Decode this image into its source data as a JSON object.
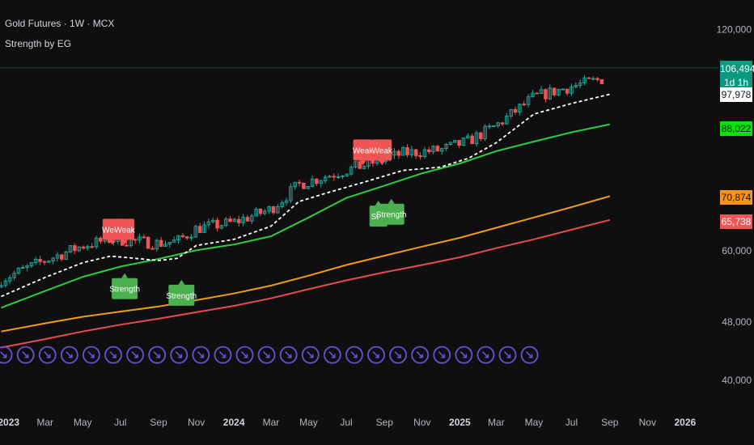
{
  "header": {
    "symbol_line": "Gold Futures · 1W · MCX",
    "indicator_line": "Strength by EG"
  },
  "colors": {
    "background": "#0f0f10",
    "up_candle": "#26a69a",
    "down_candle": "#f05454",
    "ema_fast": "#2ecc40",
    "ema_mid": "#f39c12",
    "ema_slow": "#e74c4c",
    "trail": "#ffffff",
    "weak_label": "#f05454",
    "strength_label": "#4caf50",
    "marker": "#6d4fd6"
  },
  "chart_data": {
    "type": "line",
    "title": "Gold Futures · 1W · MCX",
    "indicator": "Strength by EG",
    "y_axis": {
      "ticks": [
        120000,
        60000,
        48000,
        40000
      ],
      "tick_labels": [
        "120,000",
        "60,000",
        "48,000",
        "40,000"
      ],
      "scale": "log",
      "range": [
        38000,
        125000
      ]
    },
    "x_axis": {
      "tick_labels": [
        "2023",
        "Mar",
        "May",
        "Jul",
        "Sep",
        "Nov",
        "2024",
        "Mar",
        "May",
        "Jul",
        "Sep",
        "Nov",
        "2025",
        "Mar",
        "May",
        "Jul",
        "Sep",
        "Nov",
        "2026"
      ],
      "bold_labels": [
        "2023",
        "2024",
        "2025",
        "2026"
      ],
      "range": [
        "2022-12-18",
        "2026-02-20"
      ]
    },
    "price_tags": [
      {
        "value": "106,494",
        "sub": "1d 1h",
        "bg": "#089981",
        "fg": "#ffffff"
      },
      {
        "value": "97,978",
        "sub": "",
        "bg": "#ffffff",
        "fg": "#131722"
      },
      {
        "value": "88,022",
        "sub": "",
        "bg": "#00e600",
        "fg": "#131722"
      },
      {
        "value": "70,874",
        "sub": "",
        "bg": "#f7931a",
        "fg": "#131722"
      },
      {
        "value": "65,738",
        "sub": "",
        "bg": "#f05454",
        "fg": "#ffffff"
      }
    ],
    "price_tag_levels": [
      106494,
      97978,
      88022,
      70874,
      65738
    ],
    "series": [
      {
        "key": "ema_fast",
        "points": [
          [
            "2022-12-20",
            50200
          ],
          [
            "2023-03-01",
            52900
          ],
          [
            "2023-05-01",
            55300
          ],
          [
            "2023-07-01",
            57100
          ],
          [
            "2023-09-01",
            58500
          ],
          [
            "2023-11-01",
            60100
          ],
          [
            "2024-01-01",
            61200
          ],
          [
            "2024-03-01",
            62800
          ],
          [
            "2024-05-01",
            66600
          ],
          [
            "2024-07-01",
            70800
          ],
          [
            "2024-09-01",
            73600
          ],
          [
            "2024-11-01",
            76500
          ],
          [
            "2025-01-01",
            78900
          ],
          [
            "2025-03-01",
            82000
          ],
          [
            "2025-05-01",
            84500
          ],
          [
            "2025-07-01",
            87000
          ],
          [
            "2025-09-01",
            89200
          ]
        ]
      },
      {
        "key": "ema_mid",
        "points": [
          [
            "2022-12-20",
            46600
          ],
          [
            "2023-03-01",
            47800
          ],
          [
            "2023-05-01",
            48800
          ],
          [
            "2023-07-01",
            49600
          ],
          [
            "2023-09-01",
            50400
          ],
          [
            "2023-11-01",
            51400
          ],
          [
            "2024-01-01",
            52500
          ],
          [
            "2024-03-01",
            53800
          ],
          [
            "2024-05-01",
            55500
          ],
          [
            "2024-07-01",
            57400
          ],
          [
            "2024-09-01",
            59100
          ],
          [
            "2024-11-01",
            60800
          ],
          [
            "2025-01-01",
            62500
          ],
          [
            "2025-03-01",
            64500
          ],
          [
            "2025-05-01",
            66600
          ],
          [
            "2025-07-01",
            68800
          ],
          [
            "2025-09-01",
            71200
          ]
        ]
      },
      {
        "key": "ema_slow",
        "points": [
          [
            "2022-12-20",
            44300
          ],
          [
            "2023-03-01",
            45500
          ],
          [
            "2023-05-01",
            46600
          ],
          [
            "2023-07-01",
            47600
          ],
          [
            "2023-09-01",
            48500
          ],
          [
            "2023-11-01",
            49500
          ],
          [
            "2024-01-01",
            50500
          ],
          [
            "2024-03-01",
            51700
          ],
          [
            "2024-05-01",
            53200
          ],
          [
            "2024-07-01",
            54700
          ],
          [
            "2024-09-01",
            56100
          ],
          [
            "2024-11-01",
            57400
          ],
          [
            "2025-01-01",
            58800
          ],
          [
            "2025-03-01",
            60500
          ],
          [
            "2025-05-01",
            62200
          ],
          [
            "2025-07-01",
            64100
          ],
          [
            "2025-09-01",
            66100
          ]
        ]
      },
      {
        "key": "trail",
        "dashed": true,
        "points": [
          [
            "2022-12-20",
            52000
          ],
          [
            "2023-03-01",
            55200
          ],
          [
            "2023-05-01",
            57800
          ],
          [
            "2023-06-15",
            59000
          ],
          [
            "2023-07-15",
            58700
          ],
          [
            "2023-09-01",
            58200
          ],
          [
            "2023-10-01",
            58600
          ],
          [
            "2023-11-01",
            61000
          ],
          [
            "2024-01-01",
            62200
          ],
          [
            "2024-03-01",
            64800
          ],
          [
            "2024-04-15",
            70000
          ],
          [
            "2024-06-01",
            72000
          ],
          [
            "2024-08-01",
            74500
          ],
          [
            "2024-10-01",
            77200
          ],
          [
            "2024-12-01",
            78000
          ],
          [
            "2025-01-15",
            80200
          ],
          [
            "2025-03-01",
            84200
          ],
          [
            "2025-05-01",
            92100
          ],
          [
            "2025-07-01",
            95200
          ],
          [
            "2025-09-01",
            98000
          ]
        ]
      }
    ],
    "signals": [
      {
        "text": "Weak",
        "type": "weak",
        "date": "2023-06-18",
        "value": 64200
      },
      {
        "text": "Weak",
        "type": "weak",
        "date": "2023-07-08",
        "value": 64200
      },
      {
        "text": "Strength",
        "type": "strength",
        "date": "2023-07-08",
        "value": 53300
      },
      {
        "text": "Strength",
        "type": "strength",
        "date": "2023-10-08",
        "value": 52200
      },
      {
        "text": "Weak",
        "type": "weak",
        "date": "2024-07-28",
        "value": 82300
      },
      {
        "text": "Weak",
        "type": "weak",
        "date": "2024-08-28",
        "value": 82300
      },
      {
        "text": "Stre",
        "type": "strength",
        "date": "2024-08-22",
        "value": 66900
      },
      {
        "text": "Strength",
        "type": "strength",
        "date": "2024-09-12",
        "value": 67300
      }
    ],
    "markers": {
      "first": "2022-12-24",
      "spacing_days": 35.5,
      "count": 25,
      "value": 43300
    }
  }
}
